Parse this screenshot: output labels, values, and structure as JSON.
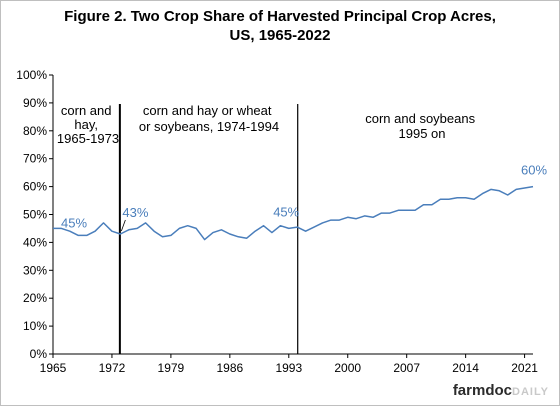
{
  "chart_data": {
    "type": "line",
    "title_line1": "Figure 2.  Two Crop Share of Harvested Principal Crop Acres,",
    "title_line2": "US, 1965-2022",
    "xlabel": "",
    "ylabel": "",
    "xlim": [
      1965,
      2022
    ],
    "ylim": [
      0,
      100
    ],
    "xticks": [
      1965,
      1972,
      1979,
      1986,
      1993,
      2000,
      2007,
      2014,
      2021
    ],
    "yticks": [
      0,
      10,
      20,
      30,
      40,
      50,
      60,
      70,
      80,
      90,
      100
    ],
    "ytick_labels": [
      "0%",
      "10%",
      "20%",
      "30%",
      "40%",
      "50%",
      "60%",
      "70%",
      "80%",
      "90%",
      "100%"
    ],
    "grid": false,
    "legend": "none",
    "line_color": "#4a7ebb",
    "series": [
      {
        "x": [
          1965,
          1966,
          1967,
          1968,
          1969,
          1970,
          1971,
          1972,
          1973,
          1974,
          1975,
          1976,
          1977,
          1978,
          1979,
          1980,
          1981,
          1982,
          1983,
          1984,
          1985,
          1986,
          1987,
          1988,
          1989,
          1990,
          1991,
          1992,
          1993,
          1994,
          1995,
          1996,
          1997,
          1998,
          1999,
          2000,
          2001,
          2002,
          2003,
          2004,
          2005,
          2006,
          2007,
          2008,
          2009,
          2010,
          2011,
          2012,
          2013,
          2014,
          2015,
          2016,
          2017,
          2018,
          2019,
          2020,
          2021,
          2022
        ],
        "values": [
          45,
          45,
          44,
          42.5,
          42.5,
          44,
          47,
          44,
          43,
          44.5,
          45,
          47,
          44,
          42,
          42.5,
          45,
          46,
          45,
          41,
          43.5,
          44.5,
          43,
          42,
          41.5,
          44,
          46,
          43.5,
          46,
          45,
          45.5,
          44,
          45.5,
          47,
          48,
          48,
          49,
          48.5,
          49.5,
          49,
          50.5,
          50.5,
          51.5,
          51.5,
          51.5,
          53.5,
          53.5,
          55.5,
          55.5,
          56,
          56,
          55.5,
          57.5,
          59,
          58.5,
          57,
          59,
          59.5,
          60
        ]
      }
    ],
    "data_labels": [
      {
        "x": 1965,
        "y": 45,
        "text": "45%"
      },
      {
        "x": 1973,
        "y": 43,
        "text": "43%"
      },
      {
        "x": 1994,
        "y": 45,
        "text": "45%"
      },
      {
        "x": 2022,
        "y": 60,
        "text": "60%"
      }
    ],
    "period_dividers": [
      1973,
      1994
    ],
    "annotations": [
      {
        "lines": [
          "corn and",
          "hay,",
          "1965-1973"
        ]
      },
      {
        "lines": [
          "corn and hay or wheat",
          "or soybeans, 1974-1994"
        ]
      },
      {
        "lines": [
          "corn and soybeans",
          "1995 on"
        ]
      }
    ]
  },
  "logo": {
    "text_main": "farmdoc",
    "text_suffix": "DAILY"
  }
}
